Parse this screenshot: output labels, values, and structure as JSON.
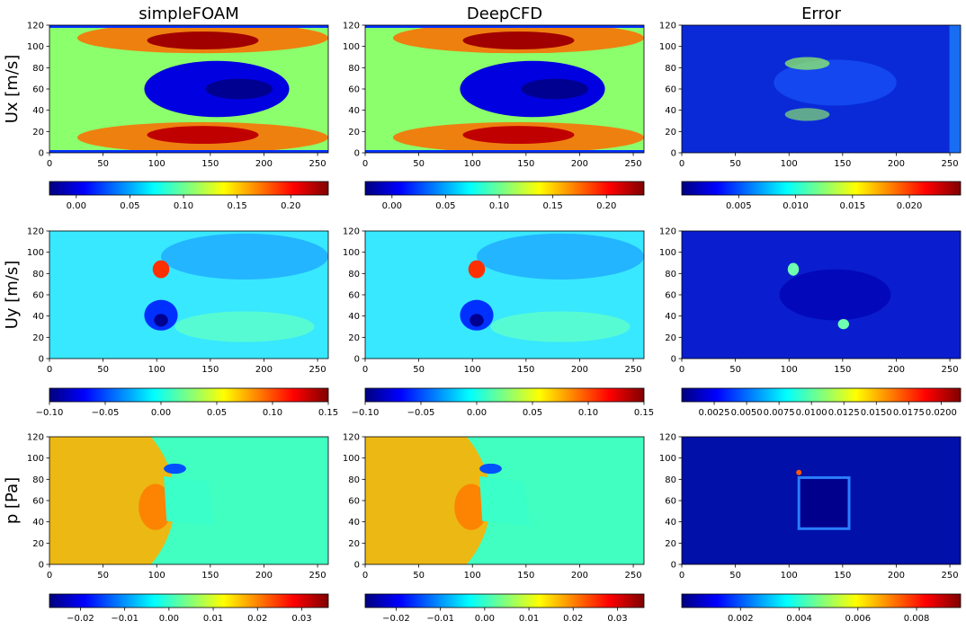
{
  "columns": [
    "simpleFOAM",
    "DeepCFD",
    "Error"
  ],
  "rows": [
    "Ux [m/s]",
    "Uy [m/s]",
    "p [Pa]"
  ],
  "colors": {
    "jet": [
      "#00007f",
      "#0000ff",
      "#007fff",
      "#00ffff",
      "#7fff7f",
      "#ffff00",
      "#ff7f00",
      "#ff0000",
      "#7f0000"
    ]
  },
  "chart_data": [
    {
      "type": "heatmap",
      "field": "Ux",
      "panel": "simpleFOAM",
      "xlim": [
        0,
        260
      ],
      "ylim": [
        0,
        120
      ],
      "xticks": [
        "0",
        "50",
        "100",
        "150",
        "200",
        "250"
      ],
      "yticks": [
        "0",
        "20",
        "40",
        "60",
        "80",
        "100",
        "120"
      ],
      "colorbar": {
        "range": [
          -0.025,
          0.235
        ],
        "ticks": [
          0.0,
          0.05,
          0.1,
          0.15,
          0.2
        ],
        "tick_labels": [
          "0.00",
          "0.05",
          "0.10",
          "0.15",
          "0.20"
        ]
      }
    },
    {
      "type": "heatmap",
      "field": "Ux",
      "panel": "DeepCFD",
      "xlim": [
        0,
        260
      ],
      "ylim": [
        0,
        120
      ],
      "xticks": [
        "0",
        "50",
        "100",
        "150",
        "200",
        "250"
      ],
      "yticks": [
        "0",
        "20",
        "40",
        "60",
        "80",
        "100",
        "120"
      ],
      "colorbar": {
        "range": [
          -0.025,
          0.235
        ],
        "ticks": [
          0.0,
          0.05,
          0.1,
          0.15,
          0.2
        ],
        "tick_labels": [
          "0.00",
          "0.05",
          "0.10",
          "0.15",
          "0.20"
        ]
      }
    },
    {
      "type": "heatmap",
      "field": "Ux",
      "panel": "Error",
      "xlim": [
        0,
        260
      ],
      "ylim": [
        0,
        120
      ],
      "xticks": [
        "0",
        "50",
        "100",
        "150",
        "200",
        "250"
      ],
      "yticks": [
        "0",
        "20",
        "40",
        "60",
        "80",
        "100",
        "120"
      ],
      "colorbar": {
        "range": [
          0.0,
          0.0245
        ],
        "ticks": [
          0.005,
          0.01,
          0.015,
          0.02
        ],
        "tick_labels": [
          "0.005",
          "0.010",
          "0.015",
          "0.020"
        ]
      }
    },
    {
      "type": "heatmap",
      "field": "Uy",
      "panel": "simpleFOAM",
      "xlim": [
        0,
        260
      ],
      "ylim": [
        0,
        120
      ],
      "xticks": [
        "0",
        "50",
        "100",
        "150",
        "200",
        "250"
      ],
      "yticks": [
        "0",
        "20",
        "40",
        "60",
        "80",
        "100",
        "120"
      ],
      "colorbar": {
        "range": [
          -0.1,
          0.15
        ],
        "ticks": [
          -0.1,
          -0.05,
          0.0,
          0.05,
          0.1,
          0.15
        ],
        "tick_labels": [
          "−0.10",
          "−0.05",
          "0.00",
          "0.05",
          "0.10",
          "0.15"
        ]
      }
    },
    {
      "type": "heatmap",
      "field": "Uy",
      "panel": "DeepCFD",
      "xlim": [
        0,
        260
      ],
      "ylim": [
        0,
        120
      ],
      "xticks": [
        "0",
        "50",
        "100",
        "150",
        "200",
        "250"
      ],
      "yticks": [
        "0",
        "20",
        "40",
        "60",
        "80",
        "100",
        "120"
      ],
      "colorbar": {
        "range": [
          -0.1,
          0.15
        ],
        "ticks": [
          -0.1,
          -0.05,
          0.0,
          0.05,
          0.1,
          0.15
        ],
        "tick_labels": [
          "−0.10",
          "−0.05",
          "0.00",
          "0.05",
          "0.10",
          "0.15"
        ]
      }
    },
    {
      "type": "heatmap",
      "field": "Uy",
      "panel": "Error",
      "xlim": [
        0,
        260
      ],
      "ylim": [
        0,
        120
      ],
      "xticks": [
        "0",
        "50",
        "100",
        "150",
        "200",
        "250"
      ],
      "yticks": [
        "0",
        "20",
        "40",
        "60",
        "80",
        "100",
        "120"
      ],
      "colorbar": {
        "range": [
          0.0,
          0.0215
        ],
        "ticks": [
          0.0025,
          0.005,
          0.0075,
          0.01,
          0.0125,
          0.015,
          0.0175,
          0.02
        ],
        "tick_labels": [
          "0.0025",
          "0.0050",
          "0.0075",
          "0.0100",
          "0.0125",
          "0.0150",
          "0.0175",
          "0.0200"
        ]
      }
    },
    {
      "type": "heatmap",
      "field": "p",
      "panel": "simpleFOAM",
      "xlim": [
        0,
        260
      ],
      "ylim": [
        0,
        120
      ],
      "xticks": [
        "0",
        "50",
        "100",
        "150",
        "200",
        "250"
      ],
      "yticks": [
        "0",
        "20",
        "40",
        "60",
        "80",
        "100",
        "120"
      ],
      "colorbar": {
        "range": [
          -0.027,
          0.036
        ],
        "ticks": [
          -0.02,
          -0.01,
          0.0,
          0.01,
          0.02,
          0.03
        ],
        "tick_labels": [
          "−0.02",
          "−0.01",
          "0.00",
          "0.01",
          "0.02",
          "0.03"
        ]
      }
    },
    {
      "type": "heatmap",
      "field": "p",
      "panel": "DeepCFD",
      "xlim": [
        0,
        260
      ],
      "ylim": [
        0,
        120
      ],
      "xticks": [
        "0",
        "50",
        "100",
        "150",
        "200",
        "250"
      ],
      "yticks": [
        "0",
        "20",
        "40",
        "60",
        "80",
        "100",
        "120"
      ],
      "colorbar": {
        "range": [
          -0.027,
          0.036
        ],
        "ticks": [
          -0.02,
          -0.01,
          0.0,
          0.01,
          0.02,
          0.03
        ],
        "tick_labels": [
          "−0.02",
          "−0.01",
          "0.00",
          "0.01",
          "0.02",
          "0.03"
        ]
      }
    },
    {
      "type": "heatmap",
      "field": "p",
      "panel": "Error",
      "xlim": [
        0,
        260
      ],
      "ylim": [
        0,
        120
      ],
      "xticks": [
        "0",
        "50",
        "100",
        "150",
        "200",
        "250"
      ],
      "yticks": [
        "0",
        "20",
        "40",
        "60",
        "80",
        "100",
        "120"
      ],
      "colorbar": {
        "range": [
          0.0,
          0.0095
        ],
        "ticks": [
          0.002,
          0.004,
          0.006,
          0.008
        ],
        "tick_labels": [
          "0.002",
          "0.004",
          "0.006",
          "0.008"
        ]
      }
    }
  ]
}
